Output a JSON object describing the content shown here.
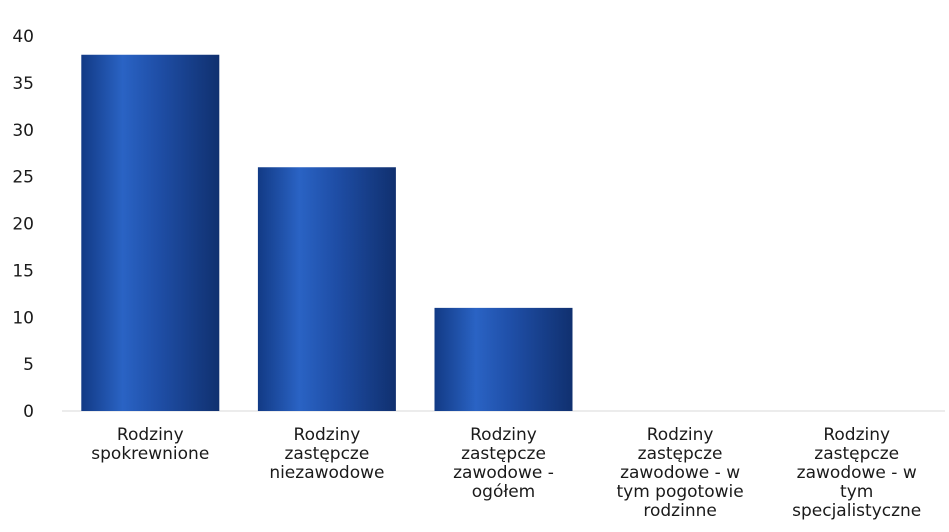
{
  "chart_data": {
    "type": "bar",
    "title": "",
    "xlabel": "",
    "ylabel": "",
    "ylim": [
      0,
      40
    ],
    "yticks": [
      0,
      5,
      10,
      15,
      20,
      25,
      30,
      35,
      40
    ],
    "grid": false,
    "legend": "none",
    "bar_color": "#1f4fa8",
    "categories": [
      [
        "Rodziny",
        "spokrewnione"
      ],
      [
        "Rodziny",
        "zastępcze",
        "niezawodowe"
      ],
      [
        "Rodziny",
        "zastępcze",
        "zawodowe -",
        "ogółem"
      ],
      [
        "Rodziny",
        "zastępcze",
        "zawodowe - w",
        "tym pogotowie",
        "rodzinne"
      ],
      [
        "Rodziny",
        "zastępcze",
        "zawodowe - w",
        "tym",
        "specjalistyczne"
      ]
    ],
    "values": [
      38,
      26,
      11,
      0,
      0
    ]
  }
}
